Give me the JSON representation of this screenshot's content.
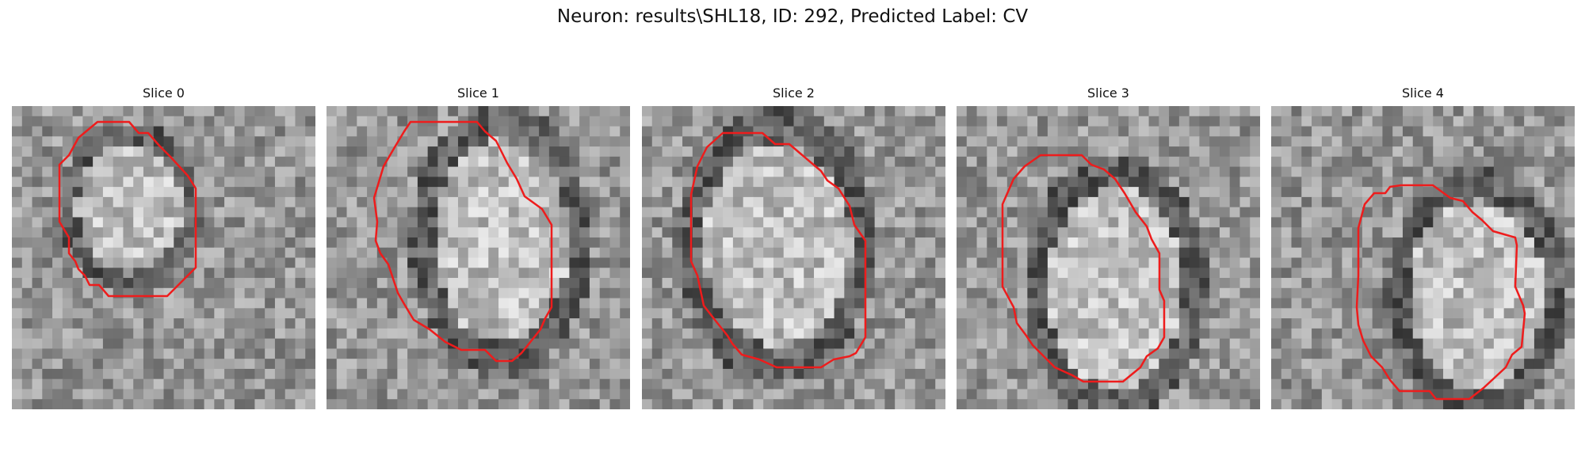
{
  "figure": {
    "title": "Neuron: results\\SHL18, ID: 292, Predicted Label: CV"
  },
  "panels": [
    {
      "title": "Slice 0"
    },
    {
      "title": "Slice 1"
    },
    {
      "title": "Slice 2"
    },
    {
      "title": "Slice 3"
    },
    {
      "title": "Slice 4"
    }
  ],
  "colors": {
    "contour": "#ee1c1c",
    "background": "#ffffff"
  }
}
